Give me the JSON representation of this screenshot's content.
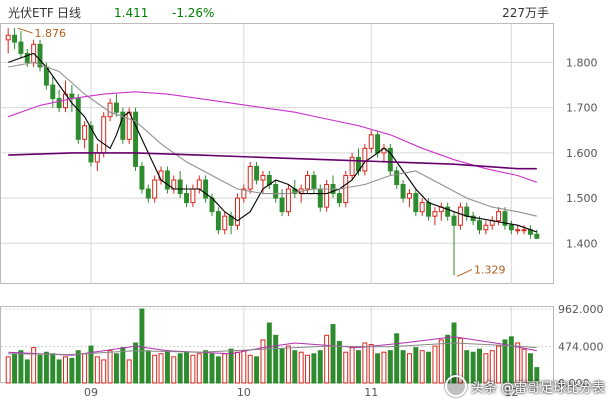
{
  "header": {
    "name": "光伏ETF",
    "period": "日线",
    "price": "1.411",
    "change": "-1.26%",
    "volume": "227万手"
  },
  "watermark": {
    "text": "头条 @雷哥足球比分表"
  },
  "colors": {
    "up": "#d9261c",
    "down": "#2e8b2e",
    "ma5": "#000000",
    "ma10": "#909090",
    "ma20": "#cc33cc",
    "ma60": "#66006e",
    "grid": "#d8d8d8",
    "header_price": "#008000"
  },
  "chart_data": [
    {
      "type": "candlestick",
      "title": "",
      "x_ticks": [
        "09",
        "10",
        "11",
        "12"
      ],
      "x_tick_index": [
        13,
        37,
        57,
        79
      ],
      "y_ticks": [
        "1.800",
        "1.700",
        "1.600",
        "1.500",
        "1.400"
      ],
      "ylim": [
        1.31,
        1.885
      ],
      "grid": true,
      "annotations": [
        {
          "text": "1.876",
          "index": 1,
          "value": 1.876
        },
        {
          "text": "1.329",
          "index": 70,
          "value": 1.329
        }
      ],
      "candles": [
        [
          1.85,
          1.876,
          1.82,
          1.86
        ],
        [
          1.86,
          1.876,
          1.83,
          1.845
        ],
        [
          1.845,
          1.87,
          1.81,
          1.82
        ],
        [
          1.82,
          1.83,
          1.79,
          1.8
        ],
        [
          1.8,
          1.85,
          1.79,
          1.84
        ],
        [
          1.84,
          1.85,
          1.78,
          1.79
        ],
        [
          1.79,
          1.8,
          1.74,
          1.75
        ],
        [
          1.75,
          1.77,
          1.7,
          1.72
        ],
        [
          1.72,
          1.74,
          1.69,
          1.7
        ],
        [
          1.7,
          1.76,
          1.69,
          1.73
        ],
        [
          1.73,
          1.75,
          1.69,
          1.72
        ],
        [
          1.72,
          1.73,
          1.62,
          1.63
        ],
        [
          1.63,
          1.67,
          1.61,
          1.66
        ],
        [
          1.66,
          1.67,
          1.57,
          1.58
        ],
        [
          1.58,
          1.62,
          1.56,
          1.6
        ],
        [
          1.6,
          1.69,
          1.59,
          1.68
        ],
        [
          1.68,
          1.72,
          1.67,
          1.71
        ],
        [
          1.71,
          1.73,
          1.68,
          1.69
        ],
        [
          1.69,
          1.7,
          1.62,
          1.63
        ],
        [
          1.63,
          1.7,
          1.62,
          1.69
        ],
        [
          1.69,
          1.7,
          1.56,
          1.57
        ],
        [
          1.57,
          1.58,
          1.51,
          1.52
        ],
        [
          1.52,
          1.53,
          1.49,
          1.5
        ],
        [
          1.5,
          1.55,
          1.49,
          1.54
        ],
        [
          1.54,
          1.57,
          1.53,
          1.56
        ],
        [
          1.56,
          1.57,
          1.51,
          1.52
        ],
        [
          1.52,
          1.55,
          1.51,
          1.54
        ],
        [
          1.54,
          1.56,
          1.5,
          1.51
        ],
        [
          1.51,
          1.53,
          1.48,
          1.49
        ],
        [
          1.49,
          1.53,
          1.48,
          1.52
        ],
        [
          1.52,
          1.55,
          1.51,
          1.54
        ],
        [
          1.54,
          1.55,
          1.49,
          1.5
        ],
        [
          1.5,
          1.51,
          1.46,
          1.47
        ],
        [
          1.47,
          1.48,
          1.42,
          1.43
        ],
        [
          1.43,
          1.47,
          1.42,
          1.46
        ],
        [
          1.46,
          1.47,
          1.42,
          1.44
        ],
        [
          1.44,
          1.51,
          1.43,
          1.5
        ],
        [
          1.5,
          1.53,
          1.49,
          1.52
        ],
        [
          1.52,
          1.58,
          1.51,
          1.57
        ],
        [
          1.57,
          1.58,
          1.53,
          1.54
        ],
        [
          1.54,
          1.56,
          1.51,
          1.55
        ],
        [
          1.55,
          1.56,
          1.52,
          1.53
        ],
        [
          1.53,
          1.54,
          1.49,
          1.5
        ],
        [
          1.5,
          1.52,
          1.46,
          1.47
        ],
        [
          1.47,
          1.53,
          1.46,
          1.52
        ],
        [
          1.52,
          1.54,
          1.5,
          1.51
        ],
        [
          1.51,
          1.53,
          1.49,
          1.52
        ],
        [
          1.52,
          1.56,
          1.51,
          1.55
        ],
        [
          1.55,
          1.56,
          1.51,
          1.52
        ],
        [
          1.52,
          1.53,
          1.47,
          1.48
        ],
        [
          1.48,
          1.54,
          1.47,
          1.53
        ],
        [
          1.53,
          1.55,
          1.5,
          1.51
        ],
        [
          1.51,
          1.52,
          1.48,
          1.49
        ],
        [
          1.49,
          1.56,
          1.48,
          1.55
        ],
        [
          1.55,
          1.6,
          1.54,
          1.59
        ],
        [
          1.59,
          1.61,
          1.55,
          1.56
        ],
        [
          1.56,
          1.62,
          1.55,
          1.61
        ],
        [
          1.61,
          1.65,
          1.6,
          1.64
        ],
        [
          1.64,
          1.65,
          1.59,
          1.6
        ],
        [
          1.6,
          1.62,
          1.58,
          1.61
        ],
        [
          1.61,
          1.62,
          1.55,
          1.56
        ],
        [
          1.56,
          1.57,
          1.52,
          1.53
        ],
        [
          1.53,
          1.54,
          1.49,
          1.5
        ],
        [
          1.5,
          1.52,
          1.48,
          1.51
        ],
        [
          1.51,
          1.52,
          1.46,
          1.47
        ],
        [
          1.47,
          1.5,
          1.46,
          1.49
        ],
        [
          1.49,
          1.5,
          1.45,
          1.46
        ],
        [
          1.46,
          1.48,
          1.44,
          1.47
        ],
        [
          1.47,
          1.49,
          1.45,
          1.48
        ],
        [
          1.48,
          1.49,
          1.45,
          1.46
        ],
        [
          1.46,
          1.47,
          1.329,
          1.44
        ],
        [
          1.44,
          1.49,
          1.43,
          1.48
        ],
        [
          1.48,
          1.49,
          1.45,
          1.46
        ],
        [
          1.46,
          1.47,
          1.44,
          1.45
        ],
        [
          1.45,
          1.46,
          1.42,
          1.43
        ],
        [
          1.43,
          1.45,
          1.42,
          1.44
        ],
        [
          1.44,
          1.46,
          1.43,
          1.45
        ],
        [
          1.45,
          1.48,
          1.44,
          1.47
        ],
        [
          1.47,
          1.48,
          1.43,
          1.44
        ],
        [
          1.44,
          1.45,
          1.42,
          1.43
        ],
        [
          1.43,
          1.44,
          1.42,
          1.43
        ],
        [
          1.43,
          1.44,
          1.42,
          1.43
        ],
        [
          1.43,
          1.44,
          1.41,
          1.42
        ],
        [
          1.42,
          1.43,
          1.41,
          1.411
        ]
      ],
      "ma_lines": [
        {
          "key": "ma5",
          "values": [
            [
              0,
              1.8
            ],
            [
              2,
              1.81
            ],
            [
              4,
              1.82
            ],
            [
              6,
              1.79
            ],
            [
              8,
              1.75
            ],
            [
              10,
              1.71
            ],
            [
              12,
              1.68
            ],
            [
              14,
              1.63
            ],
            [
              16,
              1.61
            ],
            [
              17,
              1.64
            ],
            [
              18,
              1.68
            ],
            [
              19,
              1.69
            ],
            [
              20,
              1.66
            ],
            [
              22,
              1.6
            ],
            [
              24,
              1.54
            ],
            [
              26,
              1.52
            ],
            [
              28,
              1.52
            ],
            [
              30,
              1.52
            ],
            [
              32,
              1.5
            ],
            [
              34,
              1.47
            ],
            [
              36,
              1.45
            ],
            [
              38,
              1.47
            ],
            [
              40,
              1.52
            ],
            [
              42,
              1.54
            ],
            [
              44,
              1.53
            ],
            [
              46,
              1.51
            ],
            [
              48,
              1.51
            ],
            [
              50,
              1.51
            ],
            [
              52,
              1.52
            ],
            [
              54,
              1.54
            ],
            [
              56,
              1.58
            ],
            [
              57,
              1.59
            ],
            [
              58,
              1.6
            ],
            [
              59,
              1.61
            ],
            [
              60,
              1.6
            ],
            [
              62,
              1.56
            ],
            [
              64,
              1.52
            ],
            [
              66,
              1.49
            ],
            [
              68,
              1.48
            ],
            [
              70,
              1.47
            ],
            [
              72,
              1.46
            ],
            [
              74,
              1.455
            ],
            [
              76,
              1.45
            ],
            [
              78,
              1.445
            ],
            [
              80,
              1.44
            ],
            [
              82,
              1.43
            ],
            [
              83,
              1.425
            ]
          ]
        },
        {
          "key": "ma10",
          "values": [
            [
              0,
              1.79
            ],
            [
              4,
              1.8
            ],
            [
              8,
              1.78
            ],
            [
              12,
              1.73
            ],
            [
              16,
              1.69
            ],
            [
              20,
              1.67
            ],
            [
              24,
              1.62
            ],
            [
              28,
              1.58
            ],
            [
              32,
              1.55
            ],
            [
              36,
              1.52
            ],
            [
              40,
              1.51
            ],
            [
              44,
              1.51
            ],
            [
              48,
              1.52
            ],
            [
              52,
              1.52
            ],
            [
              56,
              1.53
            ],
            [
              60,
              1.55
            ],
            [
              64,
              1.56
            ],
            [
              68,
              1.53
            ],
            [
              72,
              1.5
            ],
            [
              76,
              1.48
            ],
            [
              80,
              1.47
            ],
            [
              83,
              1.46
            ]
          ]
        },
        {
          "key": "ma20",
          "values": [
            [
              0,
              1.68
            ],
            [
              5,
              1.705
            ],
            [
              10,
              1.72
            ],
            [
              15,
              1.73
            ],
            [
              20,
              1.735
            ],
            [
              25,
              1.73
            ],
            [
              30,
              1.72
            ],
            [
              35,
              1.71
            ],
            [
              40,
              1.7
            ],
            [
              45,
              1.69
            ],
            [
              50,
              1.675
            ],
            [
              55,
              1.66
            ],
            [
              60,
              1.64
            ],
            [
              65,
              1.61
            ],
            [
              70,
              1.585
            ],
            [
              75,
              1.565
            ],
            [
              80,
              1.55
            ],
            [
              83,
              1.535
            ]
          ]
        },
        {
          "key": "ma60",
          "values": [
            [
              0,
              1.595
            ],
            [
              10,
              1.6
            ],
            [
              20,
              1.6
            ],
            [
              30,
              1.595
            ],
            [
              40,
              1.59
            ],
            [
              50,
              1.585
            ],
            [
              60,
              1.58
            ],
            [
              70,
              1.575
            ],
            [
              75,
              1.57
            ],
            [
              80,
              1.565
            ],
            [
              83,
              1.565
            ]
          ]
        }
      ]
    },
    {
      "type": "bar",
      "title": "",
      "y_ticks": [
        "962.000",
        "474.000",
        "0.000"
      ],
      "ylim": [
        0,
        962
      ],
      "volumes": [
        340,
        380,
        420,
        300,
        460,
        360,
        400,
        380,
        300,
        340,
        320,
        420,
        380,
        480,
        340,
        300,
        420,
        380,
        460,
        300,
        520,
        962,
        420,
        360,
        380,
        420,
        340,
        380,
        400,
        360,
        380,
        420,
        380,
        340,
        380,
        440,
        400,
        420,
        360,
        340,
        560,
        780,
        620,
        440,
        480,
        420,
        400,
        360,
        380,
        420,
        620,
        760,
        540,
        400,
        460,
        420,
        520,
        500,
        380,
        400,
        420,
        640,
        420,
        380,
        460,
        420,
        400,
        480,
        560,
        620,
        780,
        580,
        420,
        400,
        440,
        380,
        420,
        480,
        560,
        600,
        520,
        440,
        380,
        200
      ],
      "ma_lines": [
        {
          "key": "ma5",
          "values": [
            [
              0,
              400
            ],
            [
              10,
              360
            ],
            [
              20,
              480
            ],
            [
              25,
              420
            ],
            [
              35,
              380
            ],
            [
              40,
              460
            ],
            [
              45,
              520
            ],
            [
              55,
              460
            ],
            [
              62,
              520
            ],
            [
              70,
              600
            ],
            [
              78,
              500
            ],
            [
              83,
              420
            ]
          ]
        },
        {
          "key": "ma10",
          "values": [
            [
              0,
              380
            ],
            [
              10,
              370
            ],
            [
              20,
              420
            ],
            [
              30,
              400
            ],
            [
              40,
              440
            ],
            [
              50,
              480
            ],
            [
              60,
              470
            ],
            [
              70,
              520
            ],
            [
              80,
              480
            ],
            [
              83,
              460
            ]
          ]
        }
      ]
    }
  ]
}
